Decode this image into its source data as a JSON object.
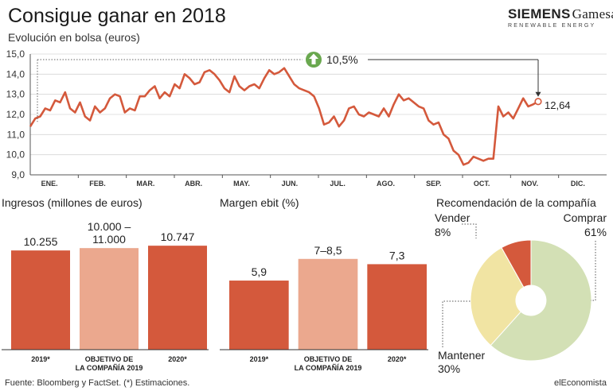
{
  "header": {
    "title": "Consigue ganar en 2018",
    "subtitle": "Evolución en bolsa (euros)"
  },
  "brand": {
    "name": "SIEMENS",
    "name2": "Gamesa",
    "tagline": "RENEWABLE ENERGY"
  },
  "colors": {
    "accent": "#d4593c",
    "light_accent": "#eba88e",
    "green_badge": "#6aa84f",
    "pie_buy": "#d3e0b5",
    "pie_hold": "#f1e4a3",
    "pie_sell": "#d4593c"
  },
  "chart_data": [
    {
      "type": "line",
      "title": "Evolución en bolsa (euros)",
      "ylim": [
        9.0,
        15.0
      ],
      "yticks": [
        "15,0",
        "14,0",
        "13,0",
        "12,0",
        "11,0",
        "10,0",
        "9,0"
      ],
      "months": [
        "ENE.",
        "FEB.",
        "MAR.",
        "ABR.",
        "MAY.",
        "JUN.",
        "JUL.",
        "AGO.",
        "SEP.",
        "OCT.",
        "NOV.",
        "DIC."
      ],
      "grid": true,
      "annotation_change": "10,5%",
      "annotation_change_icon": "arrow-up-icon",
      "last_value_label": "12,64",
      "series": [
        {
          "values": [
            11.4,
            11.8,
            11.9,
            12.3,
            12.2,
            12.7,
            12.6,
            13.1,
            12.3,
            12.1,
            12.6,
            11.9,
            11.7,
            12.4,
            12.1,
            12.3,
            12.8,
            13.0,
            12.9,
            12.1,
            12.3,
            12.2,
            12.9,
            12.9,
            13.2,
            13.4,
            12.8,
            13.1,
            12.9,
            13.5,
            13.3,
            14.0,
            13.8,
            13.5,
            13.6,
            14.1,
            14.2,
            14.0,
            13.7,
            13.3,
            13.1,
            13.9,
            13.4,
            13.2,
            13.4,
            13.5,
            13.3,
            13.8,
            14.2,
            14.0,
            14.1,
            14.3,
            13.9,
            13.5,
            13.3,
            13.2,
            13.1,
            12.9,
            12.3,
            11.5,
            11.6,
            11.9,
            11.4,
            11.7,
            12.3,
            12.4,
            12.0,
            11.9,
            12.1,
            12.0,
            11.9,
            12.3,
            11.9,
            12.5,
            13.0,
            12.7,
            12.8,
            12.6,
            12.4,
            12.3,
            11.7,
            11.5,
            11.6,
            11.0,
            10.8,
            10.2,
            10.0,
            9.5,
            9.6,
            9.9,
            9.8,
            9.7,
            9.8,
            9.8,
            12.4,
            11.9,
            12.1,
            11.8,
            12.3,
            12.8,
            12.4,
            12.5,
            12.64
          ],
          "color": "#d4593c"
        }
      ]
    },
    {
      "type": "bar",
      "title": "Ingresos (millones de euros)",
      "categories": [
        "2019*",
        "OBJETIVO DE LA COMPAÑÍA 2019",
        "2020*"
      ],
      "category_lines": [
        [
          "2019*"
        ],
        [
          "OBJETIVO DE",
          "LA COMPAÑÍA 2019"
        ],
        [
          "2020*"
        ]
      ],
      "values": [
        10255,
        10500,
        10747
      ],
      "value_labels": [
        [
          "10.255"
        ],
        [
          "10.000 –",
          "11.000"
        ],
        [
          "10.747"
        ]
      ],
      "ylim": [
        0,
        11500
      ]
    },
    {
      "type": "bar",
      "title": "Margen ebit (%)",
      "categories": [
        "2019*",
        "OBJETIVO DE LA COMPAÑÍA 2019",
        "2020*"
      ],
      "category_lines": [
        [
          "2019*"
        ],
        [
          "OBJETIVO DE",
          "LA COMPAÑÍA 2019"
        ],
        [
          "2020*"
        ]
      ],
      "values": [
        5.9,
        7.75,
        7.3
      ],
      "value_labels": [
        [
          "5,9"
        ],
        [
          "7–8,5"
        ],
        [
          "7,3"
        ]
      ],
      "ylim": [
        0,
        9.5
      ]
    },
    {
      "type": "pie",
      "title": "Recomendación de la compañía",
      "slices": [
        {
          "label": "Comprar",
          "value": 61,
          "value_label": "61%"
        },
        {
          "label": "Mantener",
          "value": 30,
          "value_label": "30%"
        },
        {
          "label": "Vender",
          "value": 8,
          "value_label": "8%"
        }
      ]
    }
  ],
  "footer": {
    "source": "Fuente: Bloomberg y FactSet. (*) Estimaciones.",
    "brand": "elEconomista"
  }
}
